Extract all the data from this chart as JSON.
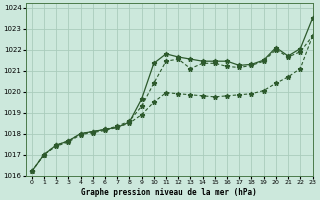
{
  "xlabel": "Graphe pression niveau de la mer (hPa)",
  "background_color": "#cce8dc",
  "grid_color": "#aaccbc",
  "line_color": "#2d5a2d",
  "xlim": [
    -0.5,
    23
  ],
  "ylim": [
    1016,
    1024.2
  ],
  "yticks": [
    1016,
    1017,
    1018,
    1019,
    1020,
    1021,
    1022,
    1023,
    1024
  ],
  "xticks": [
    0,
    1,
    2,
    3,
    4,
    5,
    6,
    7,
    8,
    9,
    10,
    11,
    12,
    13,
    14,
    15,
    16,
    17,
    18,
    19,
    20,
    21,
    22,
    23
  ],
  "line1_x": [
    0,
    1,
    2,
    3,
    4,
    5,
    6,
    7,
    8,
    9,
    10,
    11,
    12,
    13,
    14,
    15,
    16,
    17,
    18,
    19,
    20,
    21,
    22,
    23
  ],
  "line1_y": [
    1016.2,
    1017.0,
    1017.45,
    1017.65,
    1018.0,
    1018.1,
    1018.2,
    1018.3,
    1018.55,
    1019.65,
    1021.35,
    1021.8,
    1021.65,
    1021.55,
    1021.45,
    1021.45,
    1021.45,
    1021.25,
    1021.3,
    1021.5,
    1022.1,
    1021.7,
    1022.05,
    1023.5
  ],
  "line2_x": [
    0,
    1,
    2,
    3,
    4,
    5,
    6,
    7,
    8,
    9,
    10,
    11,
    12,
    13,
    14,
    15,
    16,
    17,
    18,
    19,
    20,
    21,
    22,
    23
  ],
  "line2_y": [
    1016.2,
    1017.0,
    1017.45,
    1017.65,
    1018.0,
    1018.1,
    1018.2,
    1018.35,
    1018.6,
    1019.3,
    1020.4,
    1021.45,
    1021.55,
    1021.1,
    1021.35,
    1021.35,
    1021.2,
    1021.15,
    1021.25,
    1021.45,
    1022.0,
    1021.65,
    1021.9,
    1022.65
  ],
  "line3_x": [
    0,
    1,
    2,
    3,
    4,
    5,
    6,
    7,
    8,
    9,
    10,
    11,
    12,
    13,
    14,
    15,
    16,
    17,
    18,
    19,
    20,
    21,
    22,
    23
  ],
  "line3_y": [
    1016.2,
    1017.0,
    1017.4,
    1017.6,
    1017.95,
    1018.05,
    1018.15,
    1018.3,
    1018.5,
    1018.9,
    1019.5,
    1019.95,
    1019.9,
    1019.85,
    1019.8,
    1019.75,
    1019.8,
    1019.85,
    1019.9,
    1020.05,
    1020.4,
    1020.7,
    1021.1,
    1022.65
  ]
}
